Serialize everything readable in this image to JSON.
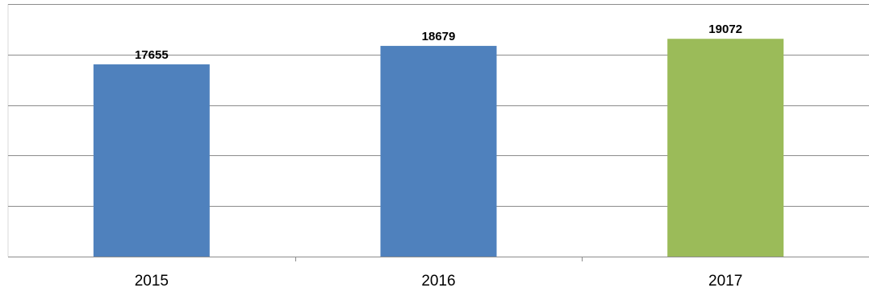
{
  "chart_data": {
    "type": "bar",
    "title": "",
    "xlabel": "",
    "ylabel": "",
    "categories": [
      "2015",
      "2016",
      "2017"
    ],
    "values": [
      17655,
      18679,
      19072
    ],
    "colors": [
      "#4f81bd",
      "#4f81bd",
      "#9bbb59"
    ],
    "gridline_color": "#8c8c8c",
    "ylim": [
      7000,
      21000
    ],
    "gridline_step": 2800,
    "grid": true,
    "legend": "none",
    "data_labels": true
  }
}
